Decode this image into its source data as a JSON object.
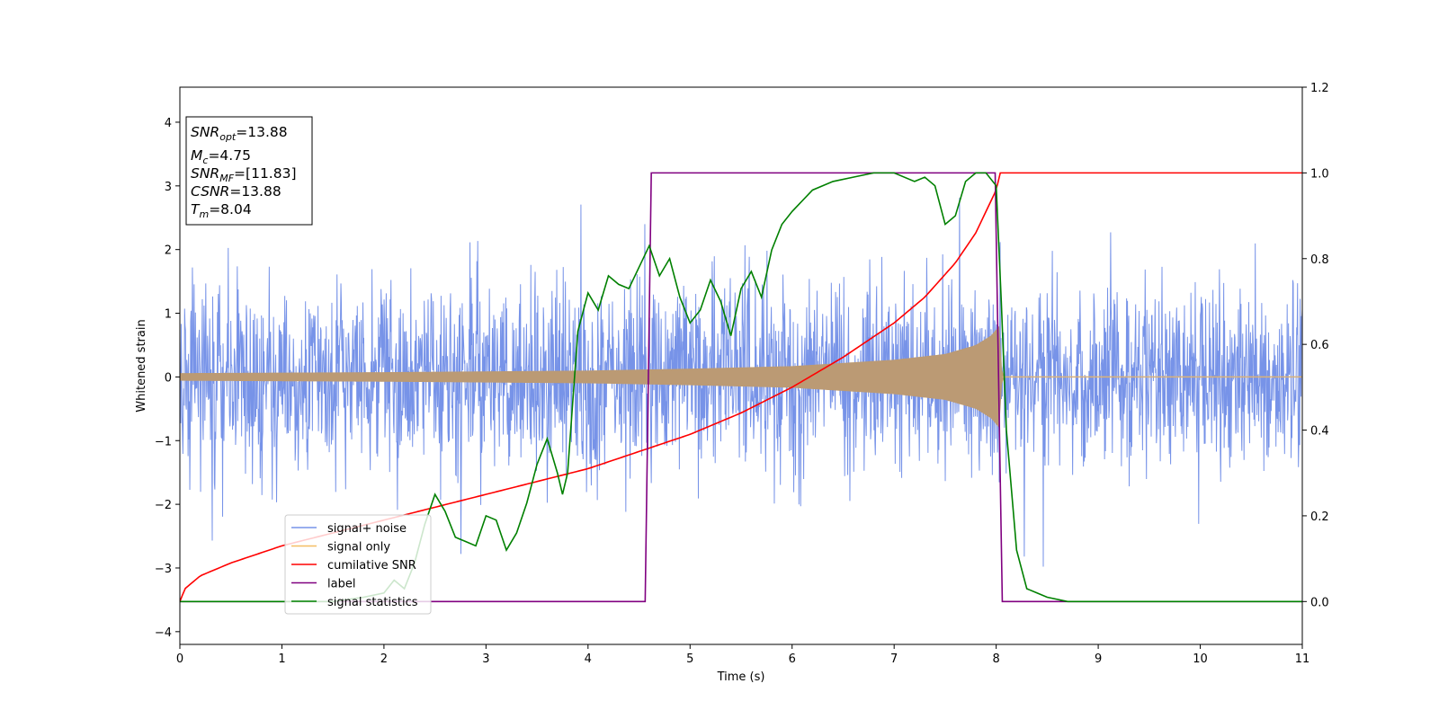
{
  "chart_data": {
    "type": "line",
    "xlabel": "Time (s)",
    "ylabel": "Whitened strain",
    "xlim": [
      0,
      11
    ],
    "ylim": [
      -4.2,
      4.55
    ],
    "y2lim": [
      -0.1,
      1.2
    ],
    "x_ticks": [
      "0",
      "1",
      "2",
      "3",
      "4",
      "5",
      "6",
      "7",
      "8",
      "9",
      "10",
      "11"
    ],
    "y_ticks": [
      "−4",
      "−3",
      "−2",
      "−1",
      "0",
      "1",
      "2",
      "3",
      "4"
    ],
    "y2_ticks": [
      "0.0",
      "0.2",
      "0.4",
      "0.6",
      "0.8",
      "1.0",
      "1.2"
    ],
    "legend_location": "lower-left",
    "info_box": {
      "snr_opt": {
        "sym": "SNR",
        "sub": "opt",
        "value": "=13.88"
      },
      "mc": {
        "sym": "M",
        "sub": "c",
        "value": "=4.75"
      },
      "snr_mf": {
        "sym": "SNR",
        "sub": "MF",
        "value": "=[11.83]"
      },
      "csnr": {
        "sym": "CSNR",
        "value": "=13.88"
      },
      "tm": {
        "sym": "T",
        "sub": "m",
        "value": "=8.04"
      }
    },
    "series": [
      {
        "name": "signal+ noise",
        "color": "#7793e8",
        "axis": "left",
        "noise_sigma": 0.72,
        "note": "dense noise trace spanning full time range"
      },
      {
        "name": "signal only",
        "color": "#f5bd62",
        "axis": "left",
        "envelope": {
          "x": [
            0,
            2,
            4,
            5,
            6,
            7,
            7.5,
            7.8,
            7.95,
            8.04,
            8.06,
            11
          ],
          "y": [
            0.06,
            0.075,
            0.1,
            0.13,
            0.17,
            0.27,
            0.36,
            0.5,
            0.65,
            0.82,
            0.0,
            0.0
          ]
        }
      },
      {
        "name": "cumilative SNR",
        "color": "#ff0000",
        "axis": "right",
        "x": [
          0,
          0.05,
          0.2,
          0.5,
          1,
          1.5,
          2,
          2.5,
          3,
          3.5,
          4,
          4.5,
          5,
          5.5,
          6,
          6.5,
          7,
          7.3,
          7.6,
          7.8,
          7.9,
          8.0,
          8.04,
          8.06,
          11
        ],
        "y": [
          0.0,
          0.03,
          0.06,
          0.09,
          0.13,
          0.16,
          0.19,
          0.22,
          0.25,
          0.28,
          0.31,
          0.35,
          0.39,
          0.44,
          0.5,
          0.57,
          0.65,
          0.71,
          0.79,
          0.86,
          0.91,
          0.96,
          1.0,
          1.0,
          1.0
        ]
      },
      {
        "name": "label",
        "color": "#800080",
        "axis": "right",
        "x": [
          0,
          4.56,
          4.62,
          7.99,
          8.06,
          11
        ],
        "y": [
          0,
          0,
          1,
          1,
          0,
          0
        ]
      },
      {
        "name": "signal statistics",
        "color": "#008000",
        "axis": "right",
        "x": [
          0,
          1.5,
          1.8,
          2.0,
          2.1,
          2.2,
          2.3,
          2.4,
          2.5,
          2.6,
          2.7,
          2.8,
          2.9,
          3.0,
          3.1,
          3.2,
          3.3,
          3.4,
          3.5,
          3.6,
          3.7,
          3.75,
          3.8,
          3.9,
          4.0,
          4.1,
          4.2,
          4.3,
          4.4,
          4.5,
          4.6,
          4.7,
          4.8,
          4.9,
          5.0,
          5.1,
          5.2,
          5.3,
          5.4,
          5.5,
          5.6,
          5.7,
          5.8,
          5.9,
          6.0,
          6.2,
          6.4,
          6.6,
          6.8,
          7.0,
          7.2,
          7.3,
          7.4,
          7.5,
          7.55,
          7.6,
          7.7,
          7.8,
          7.9,
          8.0,
          8.05,
          8.1,
          8.2,
          8.3,
          8.4,
          8.5,
          8.7,
          9.0,
          11
        ],
        "y": [
          0.0,
          0.0,
          0.01,
          0.02,
          0.05,
          0.03,
          0.09,
          0.18,
          0.25,
          0.21,
          0.15,
          0.14,
          0.13,
          0.2,
          0.19,
          0.12,
          0.16,
          0.23,
          0.32,
          0.38,
          0.3,
          0.25,
          0.3,
          0.63,
          0.72,
          0.68,
          0.76,
          0.74,
          0.73,
          0.78,
          0.83,
          0.76,
          0.8,
          0.71,
          0.65,
          0.68,
          0.75,
          0.7,
          0.62,
          0.73,
          0.77,
          0.71,
          0.82,
          0.88,
          0.91,
          0.96,
          0.98,
          0.99,
          1.0,
          1.0,
          0.98,
          0.99,
          0.97,
          0.88,
          0.89,
          0.9,
          0.98,
          1.0,
          1.0,
          0.97,
          0.7,
          0.4,
          0.12,
          0.03,
          0.02,
          0.01,
          0.0,
          0.0,
          0.0
        ]
      }
    ]
  }
}
